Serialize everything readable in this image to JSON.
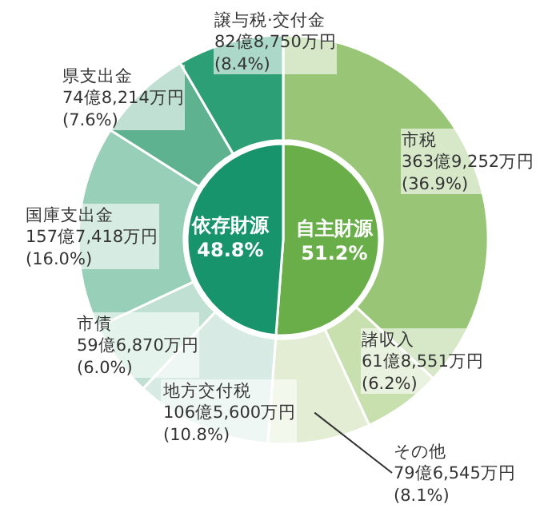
{
  "chart_data": {
    "type": "donut",
    "series": [
      {
        "type": "pie",
        "values": [
          51.2,
          48.8
        ],
        "colors": [
          "#6aae4a",
          "#17946b"
        ],
        "value_labels": [
          "自主財源\n51.2%",
          "依存財源\n48.8%"
        ]
      },
      {
        "values": [
          36.9,
          6.2,
          8.1,
          10.8,
          6.0,
          16.0,
          7.6,
          8.4
        ],
        "colors": [
          "#98c576",
          "#c8dfae",
          "#e2edd3",
          "#d7ebe4",
          "#bfe0d2",
          "#98cfb8",
          "#5fb28f",
          "#2d9f77"
        ],
        "value_labels": [
          "市税\n363億9,252万円\n(36.9%)",
          "諸収入\n61億8,551万円\n(6.2%)",
          "その他\n79億6,545万円\n(8.1%)",
          "地方交付税\n106億5,600万円\n(10.8%)",
          "市債\n59億6,870万円\n(6.0%)",
          "国庫支出金\n157億7,418万円\n(16.0%)",
          "県支出金\n74億8,214万円\n(7.6%)",
          "譲与税·交付金\n82億8,750万円\n(8.4%)"
        ]
      }
    ]
  }
}
